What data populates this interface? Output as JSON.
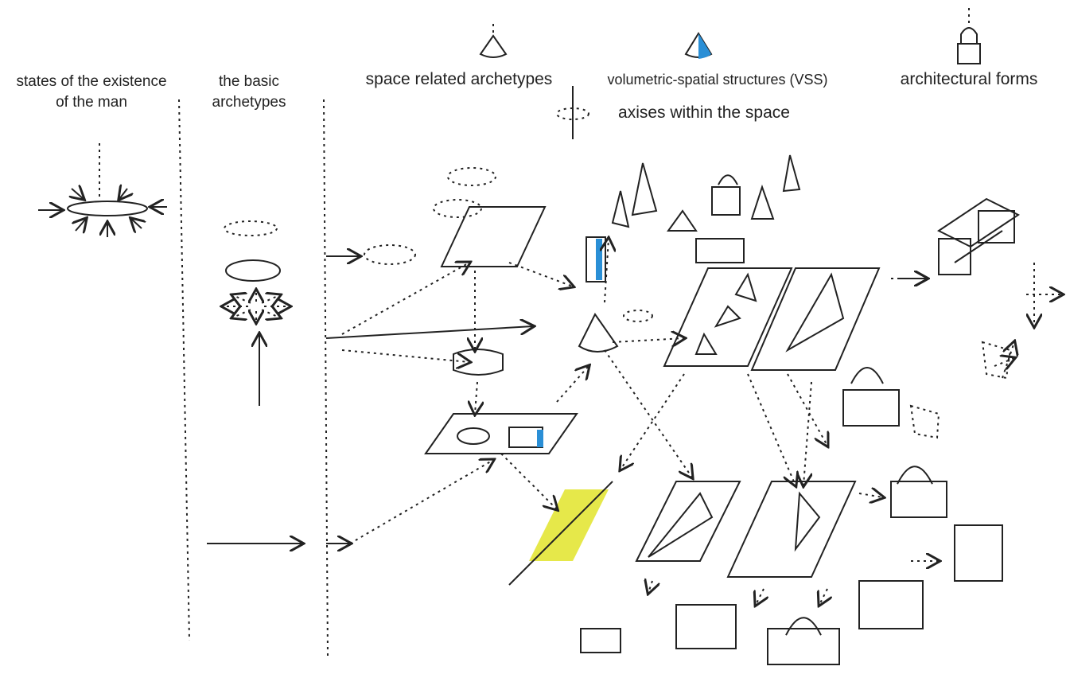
{
  "columns": {
    "states": {
      "lines": [
        "states of the existence",
        "of the man"
      ]
    },
    "basic": {
      "lines": [
        "the basic",
        "archetypes"
      ]
    },
    "space": {
      "label": "space related archetypes"
    },
    "vss": {
      "label": "volumetric-spatial structures (VSS)"
    },
    "forms": {
      "label": "architectural forms"
    }
  },
  "legend": {
    "axes": "axises within the space"
  }
}
